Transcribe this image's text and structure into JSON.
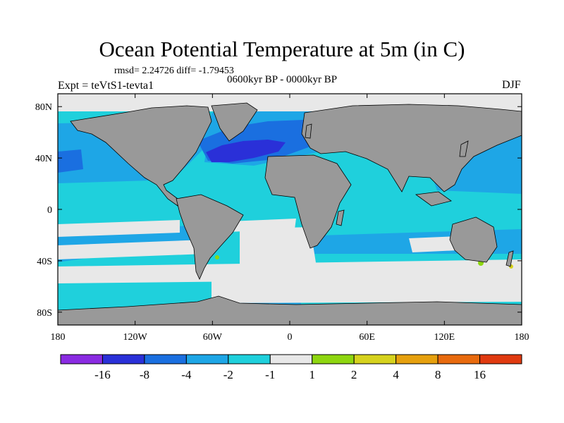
{
  "chart_data": {
    "type": "heatmap",
    "title": "Ocean Potential Temperature at 5m (in C)",
    "stats": "rmsd= 2.24726 diff= -1.79453",
    "period": "0600kyr BP - 0000kyr BP",
    "experiment": "Expt = teVtS1-tevta1",
    "season": "DJF",
    "x_axis": {
      "range": [
        -180,
        180
      ],
      "ticks": [
        {
          "value": -180,
          "label": "180"
        },
        {
          "value": -120,
          "label": "120W"
        },
        {
          "value": -60,
          "label": "60W"
        },
        {
          "value": 0,
          "label": "0"
        },
        {
          "value": 60,
          "label": "60E"
        },
        {
          "value": 120,
          "label": "120E"
        },
        {
          "value": 180,
          "label": "180"
        }
      ]
    },
    "y_axis": {
      "range": [
        -90,
        90
      ],
      "ticks": [
        {
          "value": 80,
          "label": "80N"
        },
        {
          "value": 40,
          "label": "40N"
        },
        {
          "value": 0,
          "label": "0"
        },
        {
          "value": -40,
          "label": "40S"
        },
        {
          "value": -80,
          "label": "80S"
        }
      ]
    },
    "colorbar": {
      "levels": [
        "-16",
        "-8",
        "-4",
        "-2",
        "-1",
        "1",
        "2",
        "4",
        "8",
        "16"
      ],
      "colors": [
        "#8a2be2",
        "#2a30d8",
        "#1a6fe0",
        "#1ea6e6",
        "#1fd0dc",
        "#e8e8e8",
        "#8ed610",
        "#d6d21e",
        "#e6a00e",
        "#e86a0e",
        "#e03a10"
      ]
    },
    "colors": {
      "land": "#999999",
      "no_data": "#e8e8e8"
    }
  }
}
